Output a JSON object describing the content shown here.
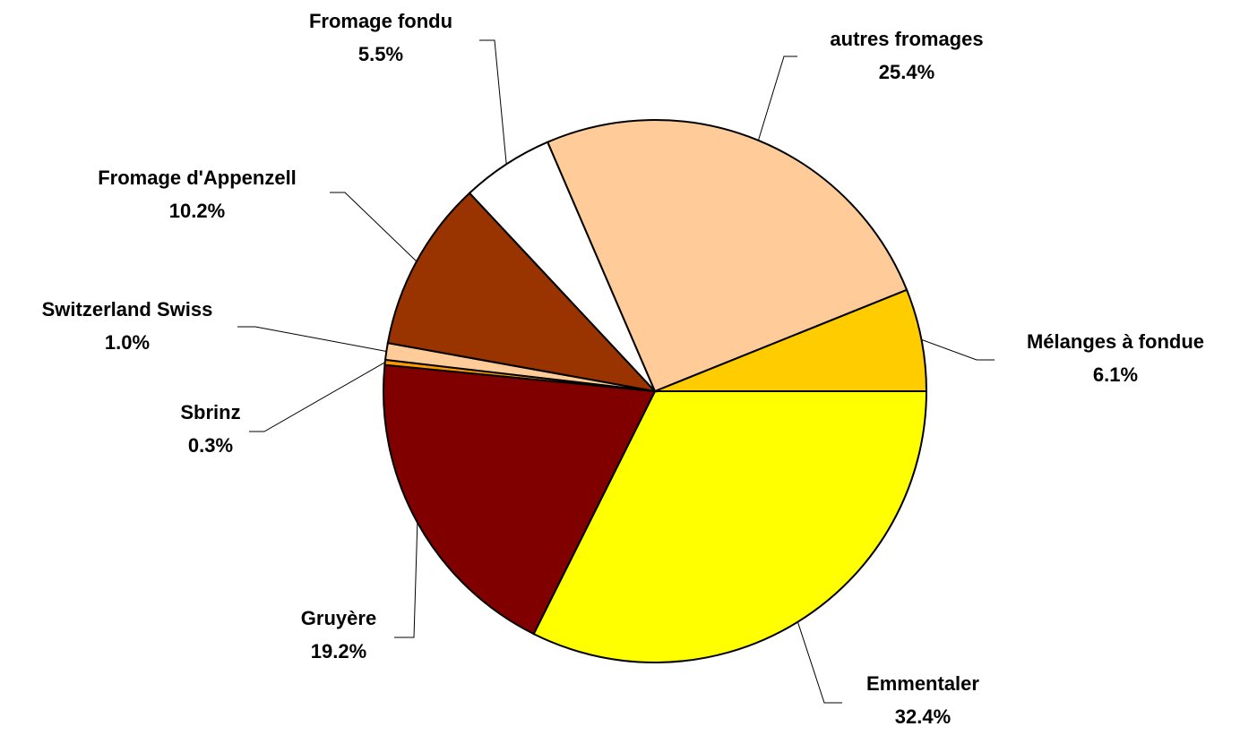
{
  "chart_data": {
    "type": "pie",
    "categories": [
      "Emmentaler",
      "Gruyère",
      "Sbrinz",
      "Switzerland Swiss",
      "Fromage d'Appenzell",
      "Fromage fondu",
      "autres fromages",
      "Mélanges à fondue"
    ],
    "values": [
      32.4,
      19.2,
      0.3,
      1.0,
      10.2,
      5.5,
      25.4,
      6.1
    ],
    "value_labels": [
      "32.4%",
      "19.2%",
      "0.3%",
      "1.0%",
      "10.2%",
      "5.5%",
      "25.4%",
      "6.1%"
    ],
    "colors": [
      "#ffff00",
      "#800000",
      "#ff9900",
      "#ffcc99",
      "#993300",
      "#ffffff",
      "#ffcc99",
      "#ffcc00"
    ]
  }
}
